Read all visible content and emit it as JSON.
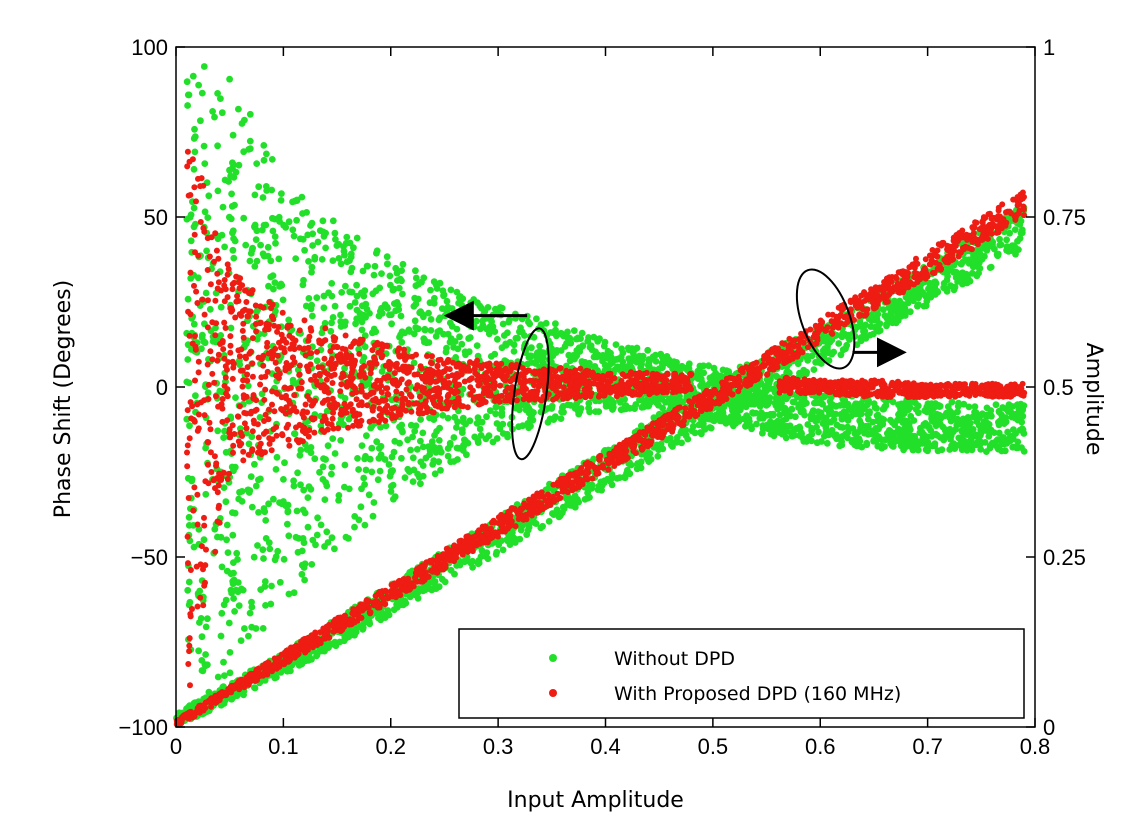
{
  "chart_data": {
    "type": "scatter",
    "xlabel": "Input Amplitude",
    "ylabel_left": "Phase Shift (Degrees)",
    "ylabel_right": "Amplitude",
    "xlim": [
      0,
      0.8
    ],
    "ylim_left": [
      -100,
      100
    ],
    "ylim_right": [
      0,
      1
    ],
    "x_ticks": [
      "0",
      "0.1",
      "0.2",
      "0.3",
      "0.4",
      "0.5",
      "0.6",
      "0.7",
      "0.8"
    ],
    "y_left_ticks": [
      "-100",
      "-50",
      "0",
      "50",
      "100"
    ],
    "y_right_ticks": [
      "0",
      "0.25",
      "0.5",
      "0.75",
      "1"
    ],
    "legend_placement": "bottom-right",
    "grid": false,
    "colors": {
      "without": "#22e02a",
      "with": "#ee1c12",
      "axis": "#000000"
    },
    "series": [
      {
        "name": "Without DPD",
        "color": "#22e02a",
        "phase": {
          "axis": "left",
          "x": [
            0.01,
            0.05,
            0.1,
            0.15,
            0.2,
            0.25,
            0.3,
            0.35,
            0.4,
            0.45,
            0.5,
            0.55,
            0.6,
            0.65,
            0.7,
            0.75,
            0.79
          ],
          "upper": [
            98,
            92,
            62,
            48,
            38,
            30,
            24,
            19,
            14,
            10,
            6,
            2,
            -2,
            -3,
            -4,
            -5,
            -5
          ],
          "lower": [
            -98,
            -88,
            -65,
            -48,
            -34,
            -24,
            -16,
            -10,
            -7,
            -6,
            -10,
            -14,
            -17,
            -18,
            -19,
            -19,
            -19
          ]
        },
        "amplitude": {
          "axis": "right",
          "x": [
            0.0,
            0.1,
            0.2,
            0.3,
            0.4,
            0.5,
            0.6,
            0.7,
            0.79
          ],
          "upper": [
            0.02,
            0.11,
            0.21,
            0.31,
            0.41,
            0.51,
            0.59,
            0.68,
            0.77
          ],
          "lower": [
            0.0,
            0.075,
            0.165,
            0.255,
            0.35,
            0.44,
            0.53,
            0.62,
            0.7
          ]
        }
      },
      {
        "name": "With Proposed DPD (160 MHz)",
        "color": "#ee1c12",
        "phase": {
          "axis": "left",
          "x": [
            0.01,
            0.05,
            0.1,
            0.15,
            0.2,
            0.25,
            0.3,
            0.35,
            0.4,
            0.45,
            0.48,
            0.56,
            0.6,
            0.65,
            0.7,
            0.75,
            0.79
          ],
          "upper": [
            78,
            35,
            22,
            16,
            12,
            9,
            7,
            6,
            5,
            4,
            4,
            3,
            2,
            2,
            1,
            1,
            1
          ],
          "lower": [
            -95,
            -25,
            -18,
            -13,
            -10,
            -7,
            -5,
            -4,
            -3,
            -2,
            -1,
            -2,
            -2,
            -3,
            -3,
            -3,
            -3
          ]
        },
        "amplitude": {
          "axis": "right",
          "x": [
            0.0,
            0.1,
            0.2,
            0.3,
            0.4,
            0.5,
            0.6,
            0.7,
            0.79
          ],
          "upper": [
            0.01,
            0.11,
            0.21,
            0.31,
            0.405,
            0.5,
            0.6,
            0.7,
            0.79
          ],
          "lower": [
            0.0,
            0.09,
            0.185,
            0.28,
            0.375,
            0.47,
            0.565,
            0.66,
            0.75
          ]
        }
      }
    ],
    "annotations": [
      {
        "label": "left-arrow",
        "points_to": "left axis",
        "at": [
          0.3,
          24
        ]
      },
      {
        "label": "right-arrow",
        "points_to": "right axis",
        "at": [
          0.66,
          0.55
        ]
      }
    ]
  }
}
